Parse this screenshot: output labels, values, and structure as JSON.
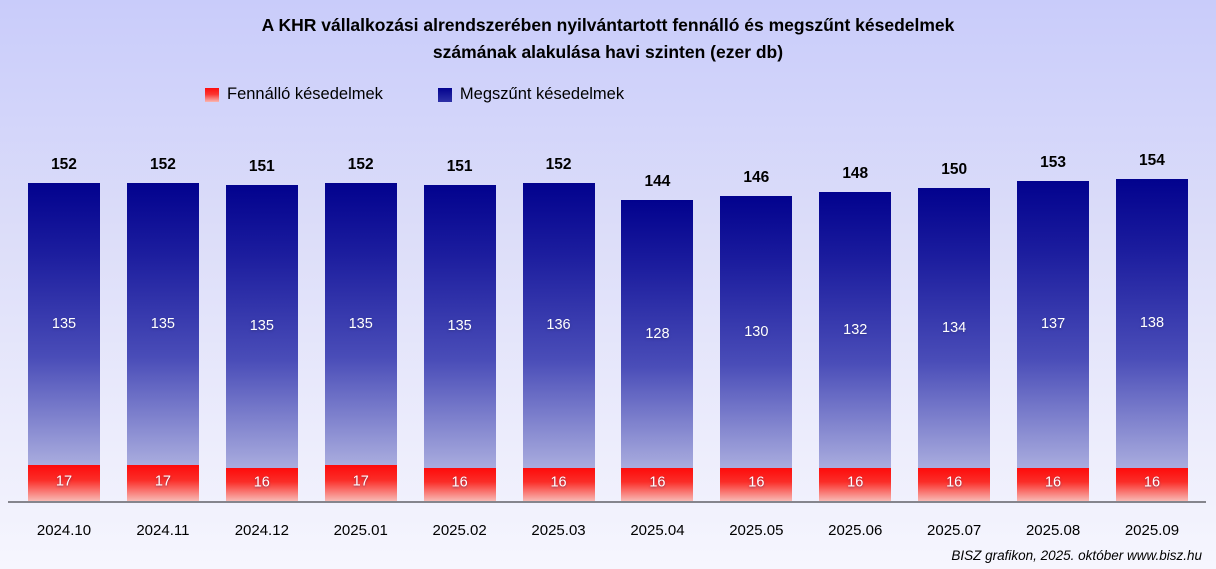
{
  "title": {
    "line1": "A KHR vállalkozási alrendszerében nyilvántartott fennálló és megszűnt késedelmek",
    "line2": "számának alakulása havi szinten (ezer db)"
  },
  "legend": [
    {
      "label": "Fennálló késedelmek",
      "color": "#fe0b0b"
    },
    {
      "label": "Megszűnt késedelmek",
      "color": "#02028e"
    }
  ],
  "chart_data": {
    "type": "bar",
    "stacked": true,
    "title": "A KHR vállalkozási alrendszerében nyilvántartott fennálló és megszűnt késedelmek számának alakulása havi szinten (ezer db)",
    "unit": "ezer db",
    "categories": [
      "2024.10",
      "2024.11",
      "2024.12",
      "2025.01",
      "2025.02",
      "2025.03",
      "2025.04",
      "2025.05",
      "2025.06",
      "2025.07",
      "2025.08",
      "2025.09"
    ],
    "series": [
      {
        "name": "Fennálló késedelmek",
        "color_top": "#fe0b0b",
        "color_bottom": "#f8b9b4",
        "values": [
          17,
          17,
          16,
          17,
          16,
          16,
          16,
          16,
          16,
          16,
          16,
          16
        ]
      },
      {
        "name": "Megszűnt késedelmek",
        "color_top": "#02028e",
        "color_bottom": "#a9acde",
        "values": [
          135,
          135,
          135,
          135,
          135,
          136,
          128,
          130,
          132,
          134,
          137,
          138
        ]
      }
    ],
    "totals": [
      152,
      152,
      151,
      152,
      151,
      152,
      144,
      146,
      148,
      150,
      153,
      154
    ],
    "legend_position": "top-left",
    "grid": false,
    "y_axis_visible": false,
    "background_top": "#c9ccfa",
    "background_bottom": "#f6f6fe"
  },
  "footer": {
    "credit": "BISZ grafikon, 2025. október www.bisz.hu"
  }
}
